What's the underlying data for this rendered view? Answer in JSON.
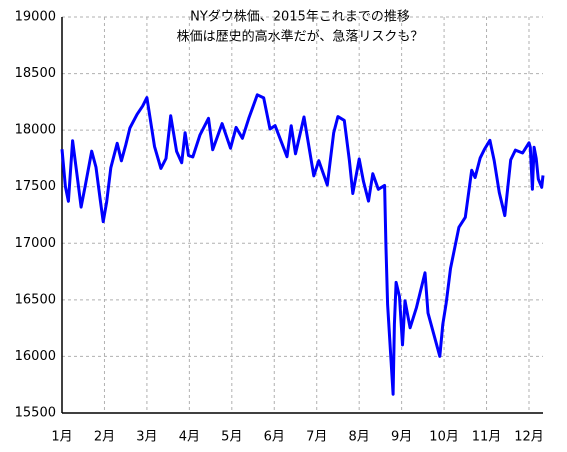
{
  "chart_data": {
    "type": "line",
    "title": "NYダウ株価、2015年これまでの推移",
    "subtitle": "株価は歴史的高水準だが、急落リスクも？",
    "color": "#0000ff",
    "grid": true,
    "x": [
      1.0,
      1.08,
      1.15,
      1.25,
      1.35,
      1.45,
      1.55,
      1.7,
      1.8,
      1.9,
      1.97,
      2.05,
      2.15,
      2.3,
      2.4,
      2.5,
      2.6,
      2.77,
      2.9,
      3.0,
      3.08,
      3.18,
      3.33,
      3.45,
      3.56,
      3.7,
      3.82,
      3.9,
      3.98,
      4.08,
      4.25,
      4.45,
      4.55,
      4.77,
      4.97,
      5.1,
      5.25,
      5.4,
      5.6,
      5.75,
      5.9,
      6.02,
      6.3,
      6.4,
      6.5,
      6.7,
      6.93,
      7.05,
      7.25,
      7.4,
      7.5,
      7.65,
      7.77,
      7.85,
      8.0,
      8.1,
      8.22,
      8.32,
      8.45,
      8.6,
      8.63,
      8.67,
      8.8,
      8.83,
      8.87,
      8.95,
      9.02,
      9.08,
      9.2,
      9.35,
      9.55,
      9.62,
      9.9,
      9.97,
      10.05,
      10.15,
      10.35,
      10.5,
      10.65,
      10.73,
      10.85,
      10.95,
      11.08,
      11.18,
      11.3,
      11.43,
      11.57,
      11.68,
      11.85,
      12.0,
      12.03,
      12.08,
      12.12,
      12.17,
      12.22,
      12.3,
      12.33
    ],
    "values": [
      17832,
      17501,
      17371,
      17907,
      17613,
      17320,
      17511,
      17814,
      17672,
      17387,
      17191,
      17361,
      17666,
      17884,
      17729,
      17868,
      18019,
      18140,
      18214,
      18288,
      18096,
      17856,
      17662,
      17749,
      18127,
      17812,
      17712,
      17977,
      17776,
      17763,
      17958,
      18105,
      17826,
      18058,
      17840,
      18024,
      17928,
      18105,
      18312,
      18285,
      18010,
      18040,
      17765,
      18039,
      17791,
      18116,
      17596,
      17730,
      17515,
      17977,
      18120,
      18086,
      17731,
      17440,
      17745,
      17550,
      17373,
      17615,
      17477,
      17512,
      16990,
      16460,
      15666,
      16285,
      16654,
      16528,
      16102,
      16492,
      16253,
      16433,
      16739,
      16384,
      16001,
      16284,
      16472,
      16776,
      17141,
      17230,
      17646,
      17581,
      17755,
      17830,
      17910,
      17730,
      17448,
      17245,
      17737,
      17824,
      17798,
      17888,
      17848,
      17478,
      17848,
      17750,
      17568,
      17495,
      17600
    ],
    "xlim": [
      1,
      12.33
    ],
    "xticks": [
      {
        "value": 1,
        "label": "1月"
      },
      {
        "value": 2,
        "label": "2月"
      },
      {
        "value": 3,
        "label": "3月"
      },
      {
        "value": 4,
        "label": "4月"
      },
      {
        "value": 5,
        "label": "5月"
      },
      {
        "value": 6,
        "label": "6月"
      },
      {
        "value": 7,
        "label": "7月"
      },
      {
        "value": 8,
        "label": "8月"
      },
      {
        "value": 9,
        "label": "9月"
      },
      {
        "value": 10,
        "label": "10月"
      },
      {
        "value": 11,
        "label": "11月"
      },
      {
        "value": 12,
        "label": "12月"
      }
    ],
    "ylim": [
      15500,
      19000
    ],
    "yticks": [
      15500,
      16000,
      16500,
      17000,
      17500,
      18000,
      18500,
      19000
    ]
  }
}
